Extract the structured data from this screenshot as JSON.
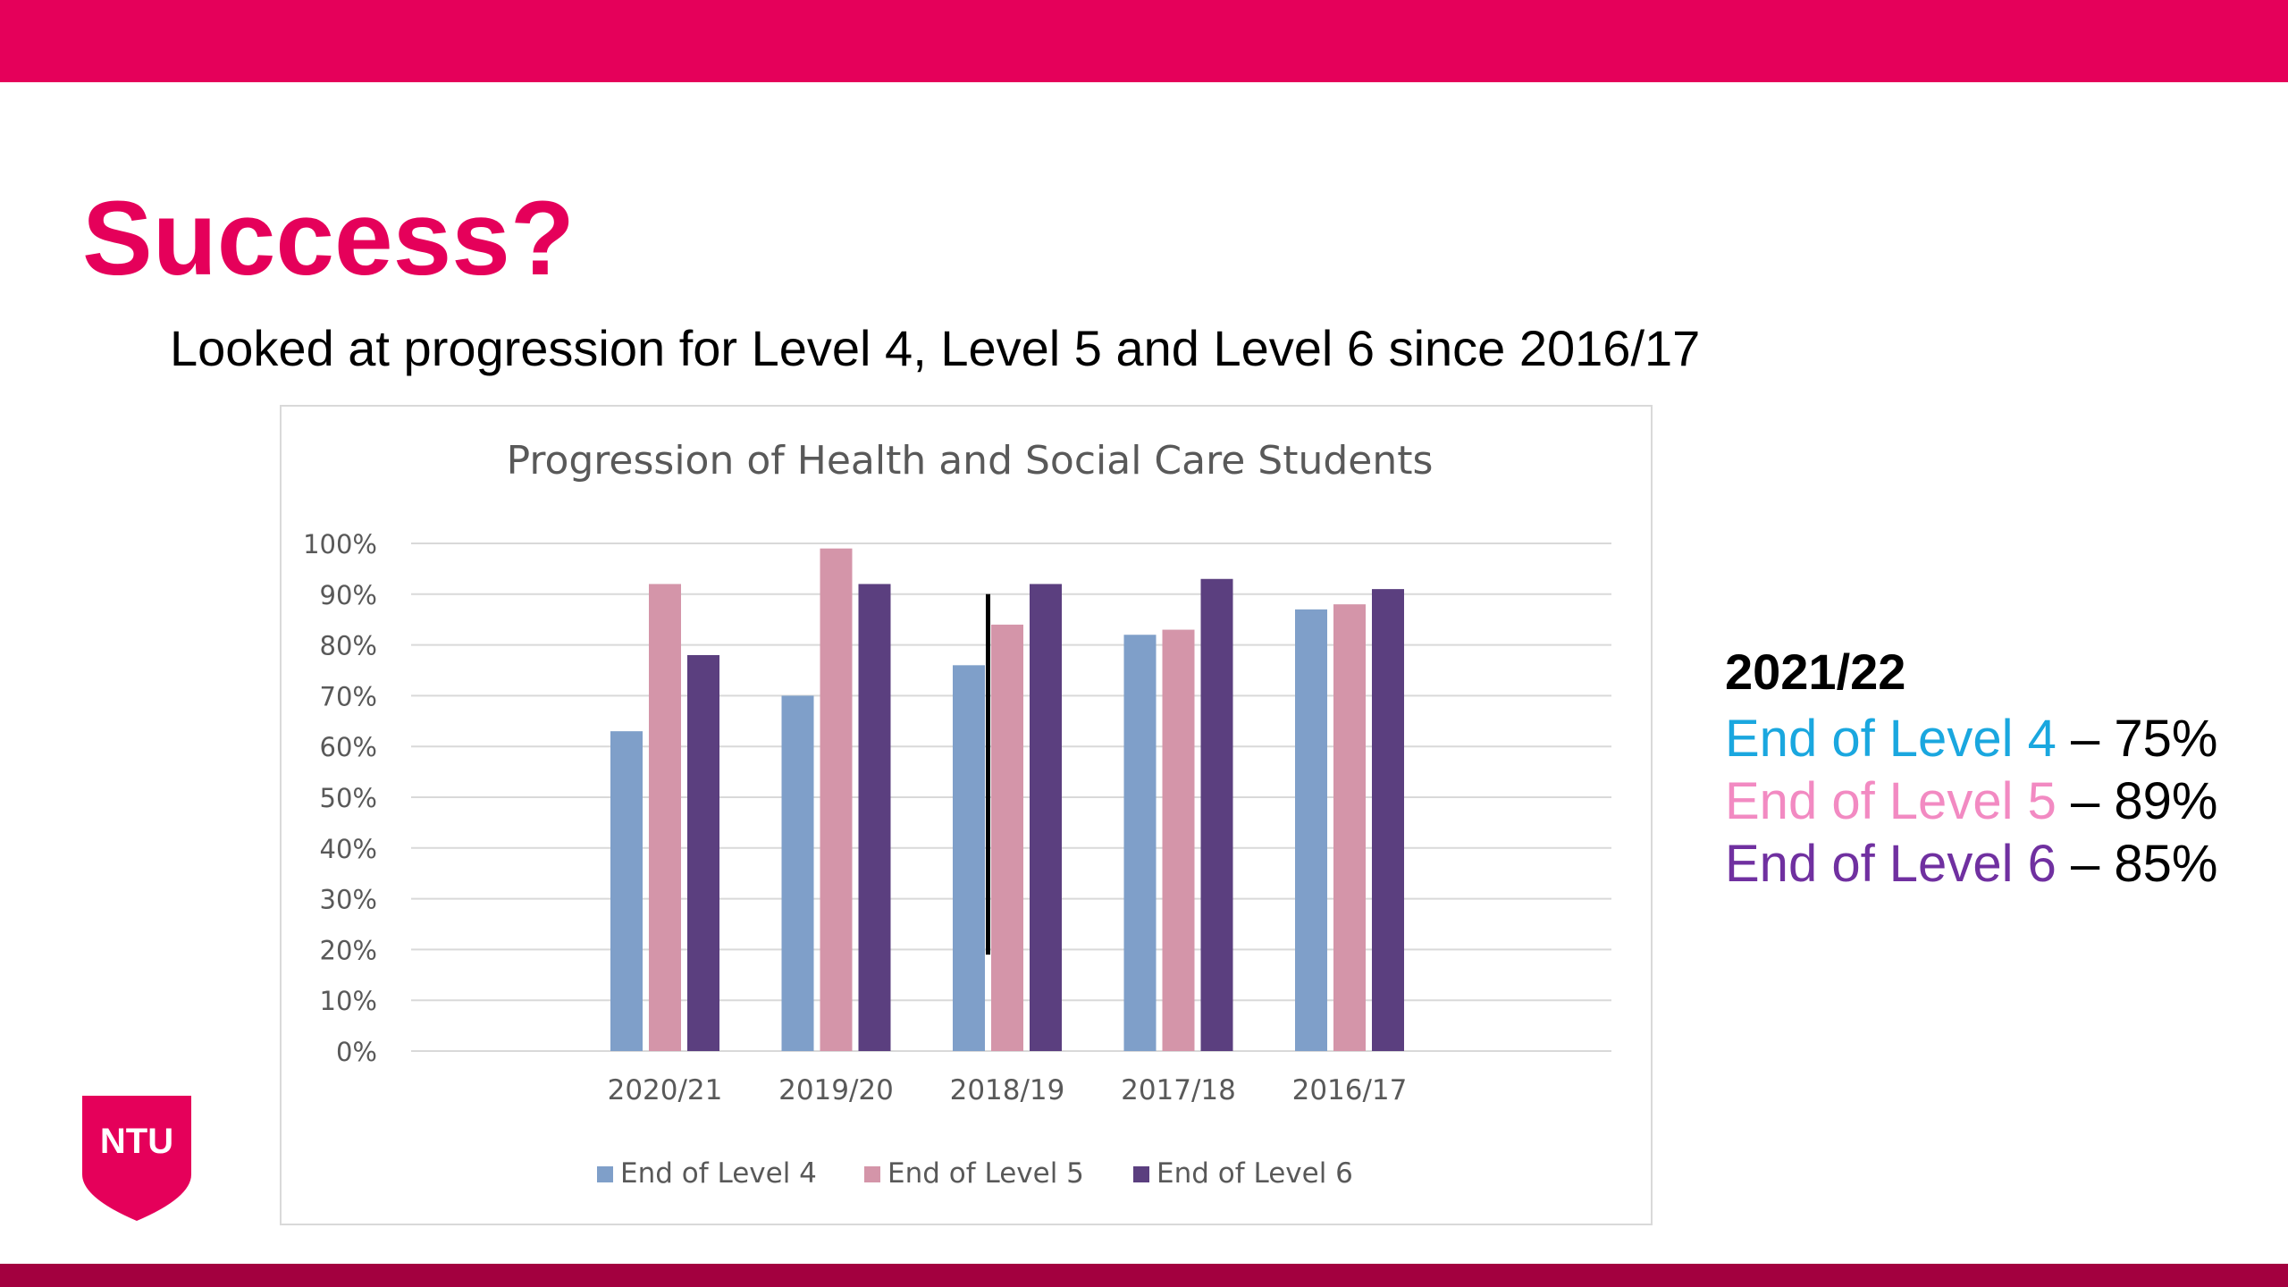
{
  "slide": {
    "title": "Success?",
    "subtitle": "Looked at progression for Level 4, Level 5 and Level 6 since 2016/17"
  },
  "side_panel": {
    "year": "2021/22",
    "rows": [
      {
        "label": "End of Level 4",
        "value": "– 75%"
      },
      {
        "label": "End of Level 5",
        "value": "– 89%"
      },
      {
        "label": "End of Level 6",
        "value": "– 85%"
      }
    ]
  },
  "logo": {
    "text": "NTU"
  },
  "colors": {
    "brand": "#e5005a",
    "bottom_bar": "#a3003f",
    "level4": "#7f9fc9",
    "level5": "#d495a9",
    "level6": "#5b3f7f"
  },
  "chart_data": {
    "type": "bar",
    "title": "Progression of Health and Social Care Students",
    "categories": [
      "2020/21",
      "2019/20",
      "2018/19",
      "2017/18",
      "2016/17"
    ],
    "series": [
      {
        "name": "End of Level 4",
        "values": [
          63,
          70,
          76,
          82,
          87
        ]
      },
      {
        "name": "End of Level 5",
        "values": [
          92,
          99,
          84,
          83,
          88
        ]
      },
      {
        "name": "End of Level 6",
        "values": [
          78,
          92,
          92,
          93,
          91
        ]
      }
    ],
    "xlabel": "",
    "ylabel": "",
    "ylim": [
      0,
      100
    ],
    "yticks": [
      "0%",
      "10%",
      "20%",
      "30%",
      "40%",
      "50%",
      "60%",
      "70%",
      "80%",
      "90%",
      "100%"
    ],
    "annotation_line": {
      "category": "2018/19",
      "from": 19,
      "to": 90
    },
    "grid": true,
    "legend_position": "bottom"
  }
}
